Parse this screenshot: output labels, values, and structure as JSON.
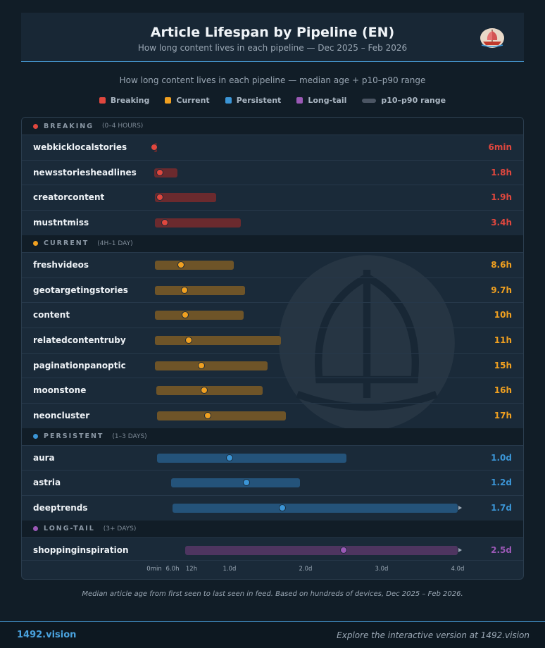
{
  "header": {
    "title": "Article Lifespan by Pipeline (EN)",
    "subtitle": "How long content lives in each pipeline — Dec 2025 – Feb 2026"
  },
  "intro": "How long content lives in each pipeline — median age + p10–p90 range",
  "legend": [
    {
      "label": "Breaking",
      "color": "#e0473e"
    },
    {
      "label": "Current",
      "color": "#f0a020"
    },
    {
      "label": "Persistent",
      "color": "#3b95d6"
    },
    {
      "label": "Long-tail",
      "color": "#9b59b6"
    },
    {
      "label": "p10–p90 range",
      "color": "#4b5563"
    }
  ],
  "chart_data": {
    "type": "range",
    "x_unit": "hours",
    "xlim": [
      0,
      96
    ],
    "x_ticks": [
      {
        "value": 0,
        "label": "0min"
      },
      {
        "value": 6,
        "label": "6.0h"
      },
      {
        "value": 12,
        "label": "12h"
      },
      {
        "value": 24,
        "label": "1.0d"
      },
      {
        "value": 48,
        "label": "2.0d"
      },
      {
        "value": 72,
        "label": "3.0d"
      },
      {
        "value": 96,
        "label": "4.0d"
      }
    ],
    "groups": [
      {
        "name": "BREAKING",
        "range_label": "(0–4 HOURS)",
        "color": "#e0473e",
        "bar_color": "#6b2a2e",
        "rows": [
          {
            "name": "webkicklocalstories",
            "label": "6min",
            "median": 0.1,
            "p10": 0.05,
            "p90": 0.2
          },
          {
            "name": "newsstoriesheadlines",
            "label": "1.8h",
            "median": 1.8,
            "p10": 0.1,
            "p90": 7.5
          },
          {
            "name": "creatorcontent",
            "label": "1.9h",
            "median": 1.9,
            "p10": 0.2,
            "p90": 19.8
          },
          {
            "name": "mustntmiss",
            "label": "3.4h",
            "median": 3.4,
            "p10": 0.2,
            "p90": 27.6
          }
        ]
      },
      {
        "name": "CURRENT",
        "range_label": "(4H–1 DAY)",
        "color": "#f0a020",
        "bar_color": "#6e5428",
        "rows": [
          {
            "name": "freshvideos",
            "label": "8.6h",
            "median": 8.6,
            "p10": 0.2,
            "p90": 25.3
          },
          {
            "name": "geotargetingstories",
            "label": "9.7h",
            "median": 9.7,
            "p10": 0.2,
            "p90": 28.9
          },
          {
            "name": "content",
            "label": "10h",
            "median": 10,
            "p10": 0.2,
            "p90": 28.4
          },
          {
            "name": "relatedcontentruby",
            "label": "11h",
            "median": 11,
            "p10": 0.2,
            "p90": 40.3
          },
          {
            "name": "paginationpanoptic",
            "label": "15h",
            "median": 15,
            "p10": 0.2,
            "p90": 36.1
          },
          {
            "name": "moonstone",
            "label": "16h",
            "median": 16,
            "p10": 0.8,
            "p90": 34.4
          },
          {
            "name": "neoncluster",
            "label": "17h",
            "median": 17,
            "p10": 1.0,
            "p90": 41.8
          }
        ]
      },
      {
        "name": "PERSISTENT",
        "range_label": "(1–3 DAYS)",
        "color": "#3b95d6",
        "bar_color": "#24537a",
        "rows": [
          {
            "name": "aura",
            "label": "1.0d",
            "median": 24,
            "p10": 1.0,
            "p90": 61.0
          },
          {
            "name": "astria",
            "label": "1.2d",
            "median": 29.3,
            "p10": 5.6,
            "p90": 46.2
          },
          {
            "name": "deeptrends",
            "label": "1.7d",
            "median": 40.7,
            "p10": 6.1,
            "p90": 96
          }
        ]
      },
      {
        "name": "LONG-TAIL",
        "range_label": "(3+ DAYS)",
        "color": "#9b59b6",
        "bar_color": "#4e3560",
        "rows": [
          {
            "name": "shoppinginspiration",
            "label": "2.5d",
            "median": 60,
            "p10": 10,
            "p90": 96
          }
        ]
      }
    ]
  },
  "footnote": "Median article age from first seen to last seen in feed. Based on hundreds of devices, Dec 2025 – Feb 2026.",
  "footer": {
    "brand": "1492.vision",
    "explore": "Explore the interactive version at 1492.vision"
  }
}
